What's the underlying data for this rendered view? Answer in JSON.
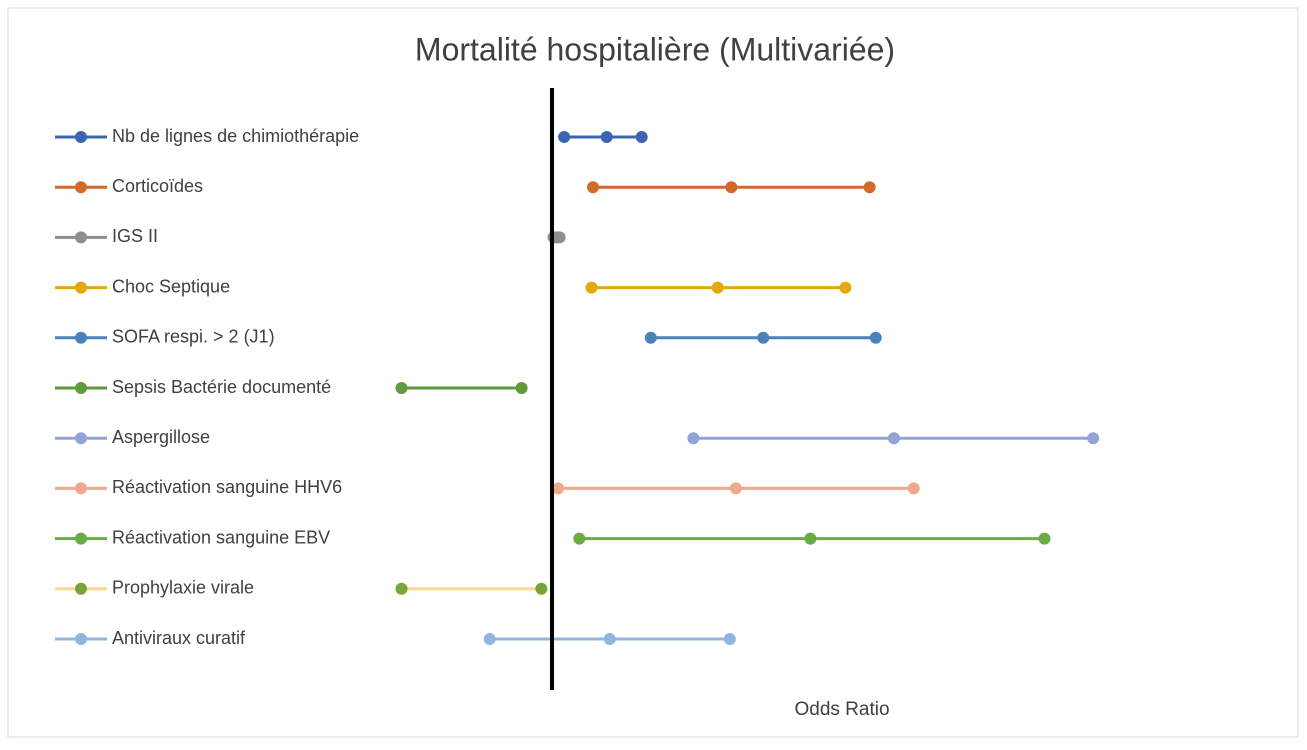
{
  "chart_data": {
    "type": "forest",
    "title": "Mortalité hospitalière (Multivariée)",
    "x_label": "Odds Ratio",
    "xlim": [
      0,
      5
    ],
    "reference": 1,
    "series": [
      {
        "name": "Nb de lignes de chimiothérapie",
        "color": "#3b65b0",
        "values": [
          1.08,
          1.36,
          1.59
        ]
      },
      {
        "name": "Corticoïdes",
        "color": "#d5692b",
        "values": [
          1.27,
          2.18,
          3.09
        ]
      },
      {
        "name": "IGS II",
        "color": "#8e8e8e",
        "values": [
          1.01,
          1.03,
          1.05
        ]
      },
      {
        "name": "Choc Septique",
        "color": "#e2a80c",
        "values": [
          1.26,
          2.09,
          2.93
        ]
      },
      {
        "name": "SOFA respi. > 2 (J1)",
        "color": "#4a82bb",
        "values": [
          1.65,
          2.39,
          3.13
        ]
      },
      {
        "name": "Sepsis Bactérie documenté",
        "color": "#5f9a3b",
        "values": [
          0.01,
          0.8
        ]
      },
      {
        "name": "Aspergillose",
        "color": "#93a3d6",
        "values": [
          1.93,
          3.25,
          4.56
        ]
      },
      {
        "name": "Réactivation sanguine HHV6",
        "color": "#f0a88c",
        "values": [
          1.04,
          2.21,
          3.38
        ]
      },
      {
        "name": "Réactivation sanguine EBV",
        "color": "#6aab45",
        "values": [
          1.18,
          2.7,
          4.24
        ]
      },
      {
        "name": "Prophylaxie viral​e",
        "color": "#fbd98c",
        "marker_color": "#76a637",
        "values": [
          0.01,
          0.93
        ]
      },
      {
        "name": "Antiviraux curatif",
        "color": "#92b4e0",
        "values": [
          0.59,
          1.38,
          2.17
        ]
      }
    ]
  }
}
